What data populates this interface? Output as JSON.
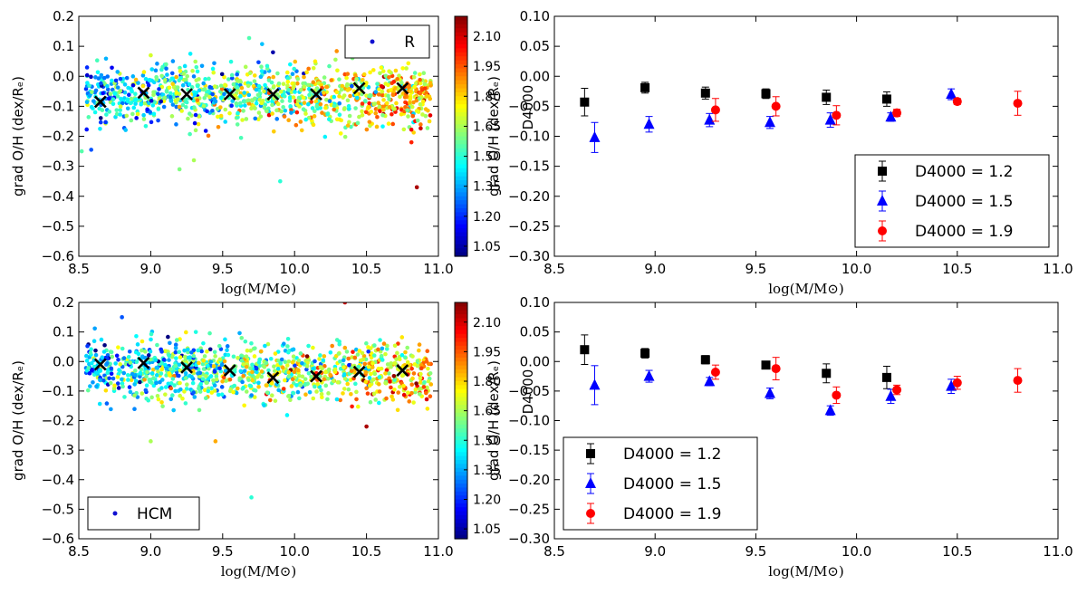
{
  "colorbar": {
    "label": "D4000",
    "ticks": [
      "1.05",
      "1.20",
      "1.35",
      "1.50",
      "1.65",
      "1.80",
      "1.95",
      "2.10"
    ],
    "tick_values": [
      1.05,
      1.2,
      1.35,
      1.5,
      1.65,
      1.8,
      1.95,
      2.1
    ],
    "range": [
      1.0,
      2.2
    ],
    "colormap": "jet"
  },
  "chart_data": [
    {
      "id": "top-left",
      "type": "scatter",
      "xlabel": "log(M/M⊙)",
      "ylabel": "grad O/H (dex/Rₑ)",
      "xlim": [
        8.5,
        11.0
      ],
      "ylim": [
        -0.6,
        0.2
      ],
      "xticks": [
        "8.5",
        "9.0",
        "9.5",
        "10.0",
        "10.5",
        "11.0"
      ],
      "xtick_values": [
        8.5,
        9.0,
        9.5,
        10.0,
        10.5,
        11.0
      ],
      "yticks": [
        "0.2",
        "0.1",
        "0.0",
        "−0.1",
        "−0.2",
        "−0.3",
        "−0.4",
        "−0.5",
        "−0.6"
      ],
      "ytick_values": [
        0.2,
        0.1,
        0.0,
        -0.1,
        -0.2,
        -0.3,
        -0.4,
        -0.5,
        -0.6
      ],
      "legend": [
        "R"
      ],
      "legend_position": "top-right",
      "cloud": {
        "n": 1100,
        "xmin": 8.55,
        "xmax": 10.95,
        "y_center": -0.06,
        "y_spread": 0.05
      },
      "outliers": [
        {
          "x": 8.52,
          "y": -0.25,
          "c": 1.55
        },
        {
          "x": 9.2,
          "y": -0.31,
          "c": 1.6
        },
        {
          "x": 9.3,
          "y": -0.28,
          "c": 1.65
        },
        {
          "x": 9.9,
          "y": -0.35,
          "c": 1.5
        },
        {
          "x": 10.85,
          "y": -0.37,
          "c": 2.15
        },
        {
          "x": 9.85,
          "y": 0.08,
          "c": 1.05
        },
        {
          "x": 9.0,
          "y": 0.07,
          "c": 1.7
        }
      ],
      "medians": {
        "x": [
          8.65,
          8.95,
          9.25,
          9.55,
          9.85,
          10.15,
          10.45,
          10.75
        ],
        "y": [
          -0.085,
          -0.055,
          -0.06,
          -0.06,
          -0.06,
          -0.06,
          -0.04,
          -0.04
        ]
      }
    },
    {
      "id": "top-right",
      "type": "scatter",
      "xlabel": "log(M/M⊙)",
      "ylabel": "grad O/H (dex/Rₑ)",
      "xlim": [
        8.5,
        11.0
      ],
      "ylim": [
        -0.3,
        0.1
      ],
      "xticks": [
        "8.5",
        "9.0",
        "9.5",
        "10.0",
        "10.5",
        "11.0"
      ],
      "xtick_values": [
        8.5,
        9.0,
        9.5,
        10.0,
        10.5,
        11.0
      ],
      "yticks": [
        "0.10",
        "0.05",
        "0.00",
        "−0.05",
        "−0.10",
        "−0.15",
        "−0.20",
        "−0.25",
        "−0.30"
      ],
      "ytick_values": [
        0.1,
        0.05,
        0.0,
        -0.05,
        -0.1,
        -0.15,
        -0.2,
        -0.25,
        -0.3
      ],
      "legend_position": "lower-right",
      "series": [
        {
          "name": "D4000 = 1.2",
          "marker": "square",
          "color": "#000000",
          "x": [
            8.65,
            8.95,
            9.25,
            9.55,
            9.85,
            10.15
          ],
          "y": [
            -0.043,
            -0.019,
            -0.028,
            -0.029,
            -0.035,
            -0.038
          ],
          "err": [
            0.023,
            0.009,
            0.01,
            0.008,
            0.012,
            0.012
          ]
        },
        {
          "name": "D4000 = 1.5",
          "marker": "triangle",
          "color": "#0000ff",
          "x": [
            8.7,
            8.97,
            9.27,
            9.57,
            9.87,
            10.17,
            10.47
          ],
          "y": [
            -0.102,
            -0.08,
            -0.073,
            -0.077,
            -0.073,
            -0.068,
            -0.03
          ],
          "err": [
            0.025,
            0.013,
            0.011,
            0.01,
            0.012,
            0.007,
            0.009
          ]
        },
        {
          "name": "D4000 = 1.9",
          "marker": "circle",
          "color": "#ff0000",
          "x": [
            9.3,
            9.6,
            9.9,
            10.2,
            10.5,
            10.8
          ],
          "y": [
            -0.056,
            -0.05,
            -0.065,
            -0.061,
            -0.042,
            -0.045
          ],
          "err": [
            0.019,
            0.016,
            0.016,
            0.006,
            0.005,
            0.02
          ]
        }
      ]
    },
    {
      "id": "bottom-left",
      "type": "scatter",
      "xlabel": "log(M/M⊙)",
      "ylabel": "grad O/H (dex/Rₑ)",
      "xlim": [
        8.5,
        11.0
      ],
      "ylim": [
        -0.6,
        0.2
      ],
      "xticks": [
        "8.5",
        "9.0",
        "9.5",
        "10.0",
        "10.5",
        "11.0"
      ],
      "xtick_values": [
        8.5,
        9.0,
        9.5,
        10.0,
        10.5,
        11.0
      ],
      "yticks": [
        "0.2",
        "0.1",
        "0.0",
        "−0.1",
        "−0.2",
        "−0.3",
        "−0.4",
        "−0.5",
        "−0.6"
      ],
      "ytick_values": [
        0.2,
        0.1,
        0.0,
        -0.1,
        -0.2,
        -0.3,
        -0.4,
        -0.5,
        -0.6
      ],
      "legend": [
        "HCM"
      ],
      "legend_position": "lower-left",
      "cloud": {
        "n": 1100,
        "xmin": 8.55,
        "xmax": 10.95,
        "y_center": -0.03,
        "y_spread": 0.05
      },
      "outliers": [
        {
          "x": 9.7,
          "y": -0.46,
          "c": 1.5
        },
        {
          "x": 9.0,
          "y": -0.27,
          "c": 1.65
        },
        {
          "x": 9.45,
          "y": -0.27,
          "c": 1.85
        },
        {
          "x": 10.5,
          "y": -0.22,
          "c": 2.15
        },
        {
          "x": 8.8,
          "y": 0.15,
          "c": 1.25
        },
        {
          "x": 10.35,
          "y": 0.2,
          "c": 2.1
        }
      ],
      "medians": {
        "x": [
          8.65,
          8.95,
          9.25,
          9.55,
          9.85,
          10.15,
          10.45,
          10.75
        ],
        "y": [
          -0.01,
          -0.005,
          -0.02,
          -0.03,
          -0.055,
          -0.05,
          -0.035,
          -0.03
        ]
      }
    },
    {
      "id": "bottom-right",
      "type": "scatter",
      "xlabel": "log(M/M⊙)",
      "ylabel": "grad O/H (dex/Rₑ)",
      "xlim": [
        8.5,
        11.0
      ],
      "ylim": [
        -0.3,
        0.1
      ],
      "xticks": [
        "8.5",
        "9.0",
        "9.5",
        "10.0",
        "10.5",
        "11.0"
      ],
      "xtick_values": [
        8.5,
        9.0,
        9.5,
        10.0,
        10.5,
        11.0
      ],
      "yticks": [
        "0.10",
        "0.05",
        "0.00",
        "−0.05",
        "−0.10",
        "−0.15",
        "−0.20",
        "−0.25",
        "−0.30"
      ],
      "ytick_values": [
        0.1,
        0.05,
        0.0,
        -0.05,
        -0.1,
        -0.15,
        -0.2,
        -0.25,
        -0.3
      ],
      "legend_position": "lower-left",
      "series": [
        {
          "name": "D4000 = 1.2",
          "marker": "square",
          "color": "#000000",
          "x": [
            8.65,
            8.95,
            9.25,
            9.55,
            9.85,
            10.15
          ],
          "y": [
            0.02,
            0.014,
            0.003,
            -0.006,
            -0.02,
            -0.027
          ],
          "err": [
            0.025,
            0.008,
            0.007,
            0.005,
            0.016,
            0.019
          ]
        },
        {
          "name": "D4000 = 1.5",
          "marker": "triangle",
          "color": "#0000ff",
          "x": [
            8.7,
            8.97,
            9.27,
            9.57,
            9.87,
            10.17,
            10.47
          ],
          "y": [
            -0.04,
            -0.025,
            -0.034,
            -0.054,
            -0.083,
            -0.059,
            -0.042
          ],
          "err": [
            0.033,
            0.01,
            0.007,
            0.009,
            0.008,
            0.012,
            0.012
          ]
        },
        {
          "name": "D4000 = 1.9",
          "marker": "circle",
          "color": "#ff0000",
          "x": [
            9.3,
            9.6,
            9.9,
            10.2,
            10.5,
            10.8
          ],
          "y": [
            -0.018,
            -0.012,
            -0.057,
            -0.048,
            -0.036,
            -0.032
          ],
          "err": [
            0.012,
            0.019,
            0.014,
            0.008,
            0.011,
            0.02
          ]
        }
      ]
    }
  ]
}
